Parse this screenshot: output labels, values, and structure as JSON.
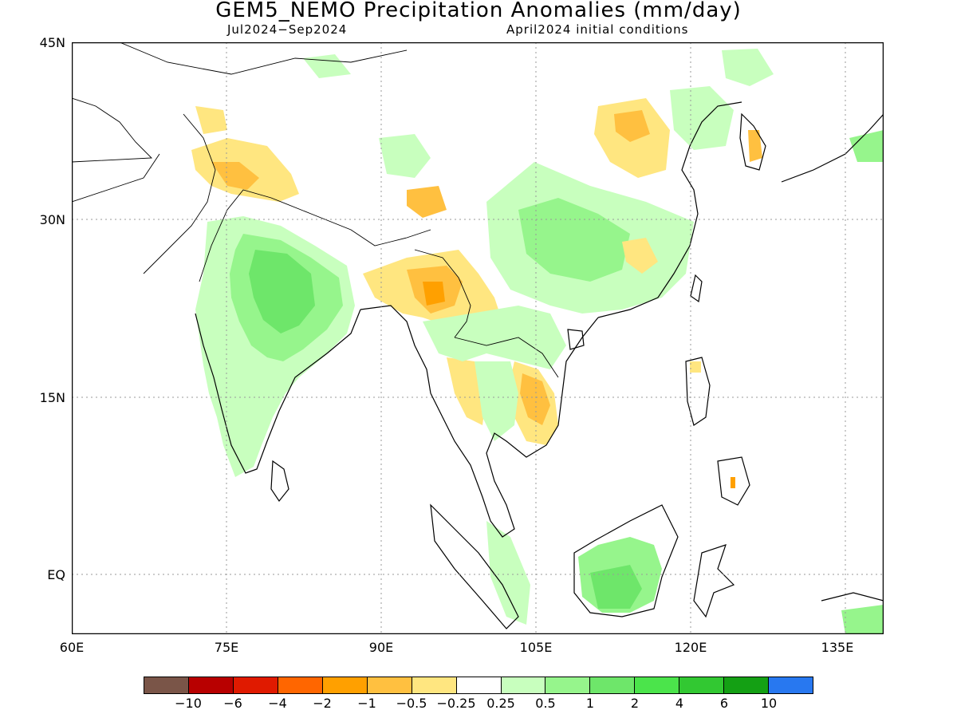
{
  "title": "GEM5_NEMO Precipitation Anomalies (mm/day)",
  "subtitle_left": "Jul2024−Sep2024",
  "subtitle_right": "April2024 initial conditions",
  "lat_labels": [
    "45N",
    "30N",
    "15N",
    "EQ"
  ],
  "lon_labels": [
    "60E",
    "75E",
    "90E",
    "105E",
    "120E",
    "135E"
  ],
  "legend": {
    "colors": [
      "#7a5548",
      "#b80000",
      "#e01a00",
      "#ff6600",
      "#ffa000",
      "#ffc040",
      "#ffe680",
      "#ffffff",
      "#c8ffbe",
      "#96f58c",
      "#6ee66a",
      "#4be44b",
      "#32c832",
      "#14a014",
      "#2878f0"
    ],
    "labels": [
      "−10",
      "−6",
      "−4",
      "−2",
      "−1",
      "−0.5",
      "−0.25",
      "0.25",
      "0.5",
      "1",
      "2",
      "4",
      "6",
      "10"
    ]
  }
}
